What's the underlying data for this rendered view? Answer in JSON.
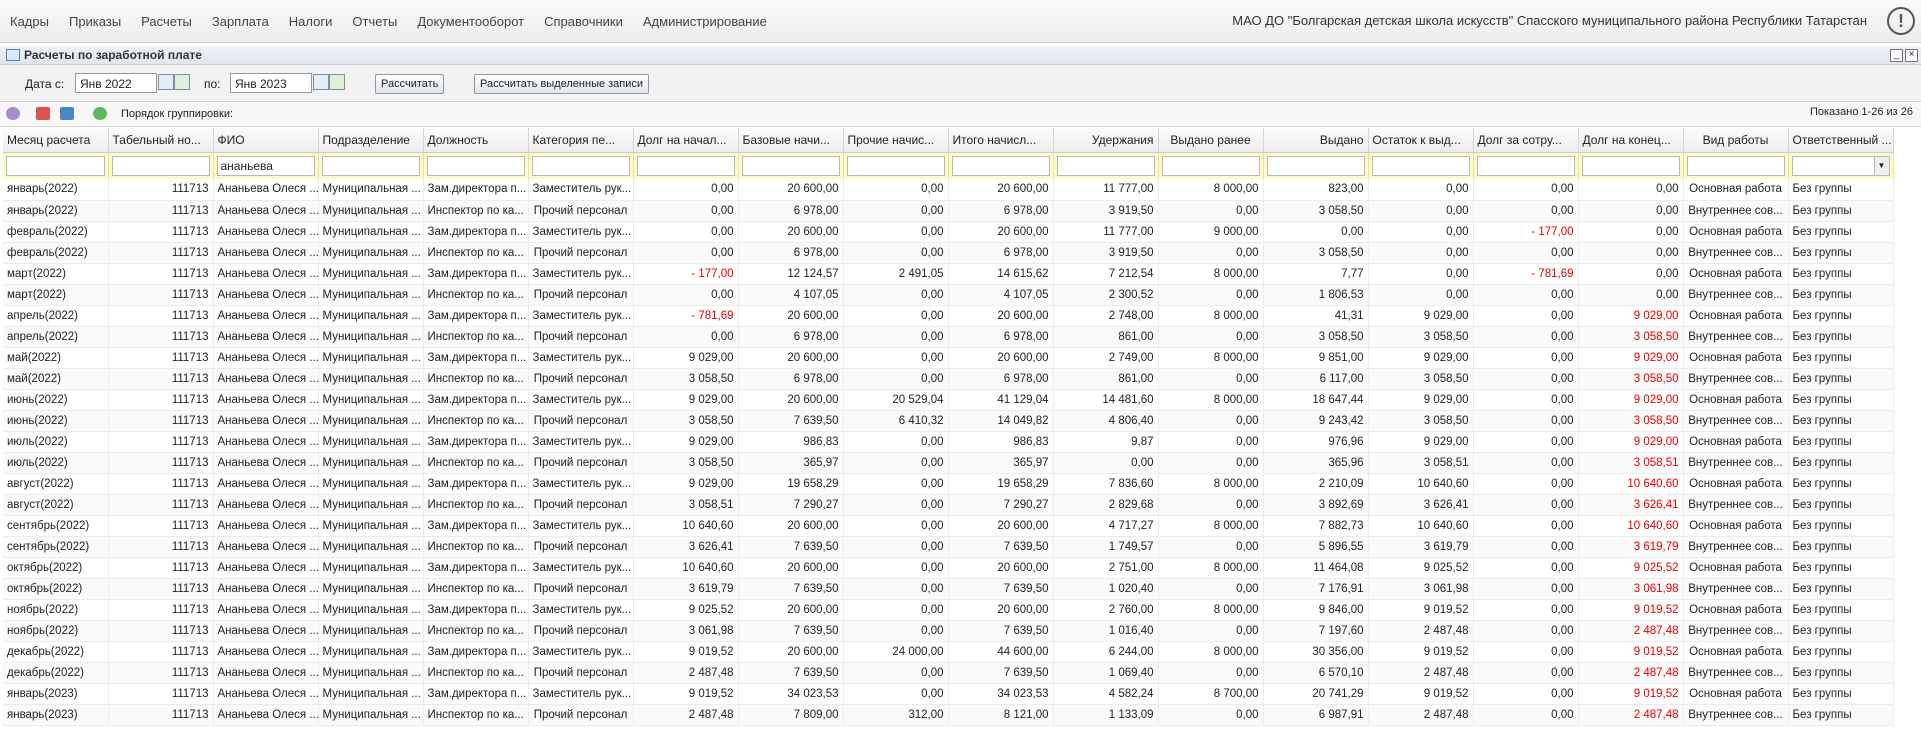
{
  "menu": [
    "Кадры",
    "Приказы",
    "Расчеты",
    "Зарплата",
    "Налоги",
    "Отчеты",
    "Документооборот",
    "Справочники",
    "Администрирование"
  ],
  "organization": "МАО ДО \"Болгарская детская школа искусств\" Спасского муниципального района Республики Татарстан",
  "window_title": "Расчеты по заработной плате",
  "toolbar": {
    "date_from_label": "Дата с:",
    "date_from": "Янв 2022",
    "date_to_label": "по:",
    "date_to": "Янв 2023",
    "calc_button": "Рассчитать",
    "calc_selected_button": "Рассчитать выделенные записи"
  },
  "grid_toolbar": {
    "grouping_label": "Порядок группировки:",
    "paging": "Показано 1-26 из 26"
  },
  "table": {
    "columns": [
      "Месяц расчета",
      "Табельный но...",
      "ФИО",
      "Подразделение",
      "Должность",
      "Категория пе...",
      "Долг на начал...",
      "Базовые начи...",
      "Прочие начис...",
      "Итого начисл...",
      "Удержания",
      "Выдано ранее",
      "Выдано",
      "Остаток к выд...",
      "Долг за сотру...",
      "Долг на конец...",
      "Вид работы",
      "Ответственный ..."
    ],
    "fio_filter": "ананьева",
    "rows": [
      [
        "январь(2022)",
        "111713",
        "Ананьева Олеся ...",
        "Муниципальная ...",
        "Зам.директора п...",
        "Заместитель рук...",
        "0,00",
        "20 600,00",
        "0,00",
        "20 600,00",
        "11 777,00",
        "8 000,00",
        "823,00",
        "0,00",
        "0,00",
        "0,00",
        "Основная работа",
        "Без группы"
      ],
      [
        "январь(2022)",
        "111713",
        "Ананьева Олеся ...",
        "Муниципальная ...",
        "Инспектор по ка...",
        "Прочий персонал",
        "0,00",
        "6 978,00",
        "0,00",
        "6 978,00",
        "3 919,50",
        "0,00",
        "3 058,50",
        "0,00",
        "0,00",
        "0,00",
        "Внутреннее сов...",
        "Без группы"
      ],
      [
        "февраль(2022)",
        "111713",
        "Ананьева Олеся ...",
        "Муниципальная ...",
        "Зам.директора п...",
        "Заместитель рук...",
        "0,00",
        "20 600,00",
        "0,00",
        "20 600,00",
        "11 777,00",
        "9 000,00",
        "0,00",
        "0,00",
        "- 177,00",
        "0,00",
        "Основная работа",
        "Без группы"
      ],
      [
        "февраль(2022)",
        "111713",
        "Ананьева Олеся ...",
        "Муниципальная ...",
        "Инспектор по ка...",
        "Прочий персонал",
        "0,00",
        "6 978,00",
        "0,00",
        "6 978,00",
        "3 919,50",
        "0,00",
        "3 058,50",
        "0,00",
        "0,00",
        "0,00",
        "Внутреннее сов...",
        "Без группы"
      ],
      [
        "март(2022)",
        "111713",
        "Ананьева Олеся ...",
        "Муниципальная ...",
        "Зам.директора п...",
        "Заместитель рук...",
        "- 177,00",
        "12 124,57",
        "2 491,05",
        "14 615,62",
        "7 212,54",
        "8 000,00",
        "7,77",
        "0,00",
        "- 781,69",
        "0,00",
        "Основная работа",
        "Без группы"
      ],
      [
        "март(2022)",
        "111713",
        "Ананьева Олеся ...",
        "Муниципальная ...",
        "Инспектор по ка...",
        "Прочий персонал",
        "0,00",
        "4 107,05",
        "0,00",
        "4 107,05",
        "2 300,52",
        "0,00",
        "1 806,53",
        "0,00",
        "0,00",
        "0,00",
        "Внутреннее сов...",
        "Без группы"
      ],
      [
        "апрель(2022)",
        "111713",
        "Ананьева Олеся ...",
        "Муниципальная ...",
        "Зам.директора п...",
        "Заместитель рук...",
        "- 781,69",
        "20 600,00",
        "0,00",
        "20 600,00",
        "2 748,00",
        "8 000,00",
        "41,31",
        "9 029,00",
        "0,00",
        "9 029,00",
        "Основная работа",
        "Без группы"
      ],
      [
        "апрель(2022)",
        "111713",
        "Ананьева Олеся ...",
        "Муниципальная ...",
        "Инспектор по ка...",
        "Прочий персонал",
        "0,00",
        "6 978,00",
        "0,00",
        "6 978,00",
        "861,00",
        "0,00",
        "3 058,50",
        "3 058,50",
        "0,00",
        "3 058,50",
        "Внутреннее сов...",
        "Без группы"
      ],
      [
        "май(2022)",
        "111713",
        "Ананьева Олеся ...",
        "Муниципальная ...",
        "Зам.директора п...",
        "Заместитель рук...",
        "9 029,00",
        "20 600,00",
        "0,00",
        "20 600,00",
        "2 749,00",
        "8 000,00",
        "9 851,00",
        "9 029,00",
        "0,00",
        "9 029,00",
        "Основная работа",
        "Без группы"
      ],
      [
        "май(2022)",
        "111713",
        "Ананьева Олеся ...",
        "Муниципальная ...",
        "Инспектор по ка...",
        "Прочий персонал",
        "3 058,50",
        "6 978,00",
        "0,00",
        "6 978,00",
        "861,00",
        "0,00",
        "6 117,00",
        "3 058,50",
        "0,00",
        "3 058,50",
        "Внутреннее сов...",
        "Без группы"
      ],
      [
        "июнь(2022)",
        "111713",
        "Ананьева Олеся ...",
        "Муниципальная ...",
        "Зам.директора п...",
        "Заместитель рук...",
        "9 029,00",
        "20 600,00",
        "20 529,04",
        "41 129,04",
        "14 481,60",
        "8 000,00",
        "18 647,44",
        "9 029,00",
        "0,00",
        "9 029,00",
        "Основная работа",
        "Без группы"
      ],
      [
        "июнь(2022)",
        "111713",
        "Ананьева Олеся ...",
        "Муниципальная ...",
        "Инспектор по ка...",
        "Прочий персонал",
        "3 058,50",
        "7 639,50",
        "6 410,32",
        "14 049,82",
        "4 806,40",
        "0,00",
        "9 243,42",
        "3 058,50",
        "0,00",
        "3 058,50",
        "Внутреннее сов...",
        "Без группы"
      ],
      [
        "июль(2022)",
        "111713",
        "Ананьева Олеся ...",
        "Муниципальная ...",
        "Зам.директора п...",
        "Заместитель рук...",
        "9 029,00",
        "986,83",
        "0,00",
        "986,83",
        "9,87",
        "0,00",
        "976,96",
        "9 029,00",
        "0,00",
        "9 029,00",
        "Основная работа",
        "Без группы"
      ],
      [
        "июль(2022)",
        "111713",
        "Ананьева Олеся ...",
        "Муниципальная ...",
        "Инспектор по ка...",
        "Прочий персонал",
        "3 058,50",
        "365,97",
        "0,00",
        "365,97",
        "0,00",
        "0,00",
        "365,96",
        "3 058,51",
        "0,00",
        "3 058,51",
        "Внутреннее сов...",
        "Без группы"
      ],
      [
        "август(2022)",
        "111713",
        "Ананьева Олеся ...",
        "Муниципальная ...",
        "Зам.директора п...",
        "Заместитель рук...",
        "9 029,00",
        "19 658,29",
        "0,00",
        "19 658,29",
        "7 836,60",
        "8 000,00",
        "2 210,09",
        "10 640,60",
        "0,00",
        "10 640,60",
        "Основная работа",
        "Без группы"
      ],
      [
        "август(2022)",
        "111713",
        "Ананьева Олеся ...",
        "Муниципальная ...",
        "Инспектор по ка...",
        "Прочий персонал",
        "3 058,51",
        "7 290,27",
        "0,00",
        "7 290,27",
        "2 829,68",
        "0,00",
        "3 892,69",
        "3 626,41",
        "0,00",
        "3 626,41",
        "Внутреннее сов...",
        "Без группы"
      ],
      [
        "сентябрь(2022)",
        "111713",
        "Ананьева Олеся ...",
        "Муниципальная ...",
        "Зам.директора п...",
        "Заместитель рук...",
        "10 640,60",
        "20 600,00",
        "0,00",
        "20 600,00",
        "4 717,27",
        "8 000,00",
        "7 882,73",
        "10 640,60",
        "0,00",
        "10 640,60",
        "Основная работа",
        "Без группы"
      ],
      [
        "сентябрь(2022)",
        "111713",
        "Ананьева Олеся ...",
        "Муниципальная ...",
        "Инспектор по ка...",
        "Прочий персонал",
        "3 626,41",
        "7 639,50",
        "0,00",
        "7 639,50",
        "1 749,57",
        "0,00",
        "5 896,55",
        "3 619,79",
        "0,00",
        "3 619,79",
        "Внутреннее сов...",
        "Без группы"
      ],
      [
        "октябрь(2022)",
        "111713",
        "Ананьева Олеся ...",
        "Муниципальная ...",
        "Зам.директора п...",
        "Заместитель рук...",
        "10 640,60",
        "20 600,00",
        "0,00",
        "20 600,00",
        "2 751,00",
        "8 000,00",
        "11 464,08",
        "9 025,52",
        "0,00",
        "9 025,52",
        "Основная работа",
        "Без группы"
      ],
      [
        "октябрь(2022)",
        "111713",
        "Ананьева Олеся ...",
        "Муниципальная ...",
        "Инспектор по ка...",
        "Прочий персонал",
        "3 619,79",
        "7 639,50",
        "0,00",
        "7 639,50",
        "1 020,40",
        "0,00",
        "7 176,91",
        "3 061,98",
        "0,00",
        "3 061,98",
        "Внутреннее сов...",
        "Без группы"
      ],
      [
        "ноябрь(2022)",
        "111713",
        "Ананьева Олеся ...",
        "Муниципальная ...",
        "Зам.директора п...",
        "Заместитель рук...",
        "9 025,52",
        "20 600,00",
        "0,00",
        "20 600,00",
        "2 760,00",
        "8 000,00",
        "9 846,00",
        "9 019,52",
        "0,00",
        "9 019,52",
        "Основная работа",
        "Без группы"
      ],
      [
        "ноябрь(2022)",
        "111713",
        "Ананьева Олеся ...",
        "Муниципальная ...",
        "Инспектор по ка...",
        "Прочий персонал",
        "3 061,98",
        "7 639,50",
        "0,00",
        "7 639,50",
        "1 016,40",
        "0,00",
        "7 197,60",
        "2 487,48",
        "0,00",
        "2 487,48",
        "Внутреннее сов...",
        "Без группы"
      ],
      [
        "декабрь(2022)",
        "111713",
        "Ананьева Олеся ...",
        "Муниципальная ...",
        "Зам.директора п...",
        "Заместитель рук...",
        "9 019,52",
        "20 600,00",
        "24 000,00",
        "44 600,00",
        "6 244,00",
        "8 000,00",
        "30 356,00",
        "9 019,52",
        "0,00",
        "9 019,52",
        "Основная работа",
        "Без группы"
      ],
      [
        "декабрь(2022)",
        "111713",
        "Ананьева Олеся ...",
        "Муниципальная ...",
        "Инспектор по ка...",
        "Прочий персонал",
        "2 487,48",
        "7 639,50",
        "0,00",
        "7 639,50",
        "1 069,40",
        "0,00",
        "6 570,10",
        "2 487,48",
        "0,00",
        "2 487,48",
        "Внутреннее сов...",
        "Без группы"
      ],
      [
        "январь(2023)",
        "111713",
        "Ананьева Олеся ...",
        "Муниципальная ...",
        "Зам.директора п...",
        "Заместитель рук...",
        "9 019,52",
        "34 023,53",
        "0,00",
        "34 023,53",
        "4 582,24",
        "8 700,00",
        "20 741,29",
        "9 019,52",
        "0,00",
        "9 019,52",
        "Основная работа",
        "Без группы"
      ],
      [
        "январь(2023)",
        "111713",
        "Ананьева Олеся ...",
        "Муниципальная ...",
        "Инспектор по ка...",
        "Прочий персонал",
        "2 487,48",
        "7 809,00",
        "312,00",
        "8 121,00",
        "1 133,09",
        "0,00",
        "6 987,91",
        "2 487,48",
        "0,00",
        "2 487,48",
        "Внутреннее сов...",
        "Без группы"
      ]
    ]
  }
}
